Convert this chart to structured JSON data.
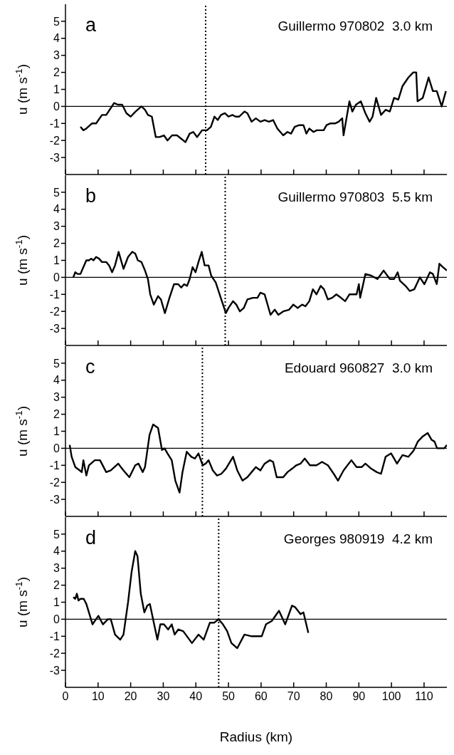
{
  "chart_data": [
    {
      "type": "line",
      "title": "Guillermo 970802  3.0 km",
      "annotations": [
        "a"
      ],
      "ylabel": "u (m s$^{-1}$)",
      "color": "#000000",
      "line_style": "solid",
      "marker": "none",
      "tick_labels": "y",
      "xlim": [
        0,
        117
      ],
      "xticks": [
        0,
        10,
        20,
        30,
        40,
        50,
        60,
        70,
        80,
        90,
        100,
        110
      ],
      "ylim": [
        -4,
        6
      ],
      "yticks": [
        -3,
        -2,
        -1,
        0,
        1,
        2,
        3,
        4,
        5
      ],
      "ref_lines": [
        {
          "axis": "y",
          "value": 0,
          "line_style": "solid"
        },
        {
          "axis": "x",
          "value": 43,
          "line_style": "dotted"
        }
      ],
      "x": [
        4.6,
        5.5,
        6.4,
        8.1,
        9.4,
        11.2,
        12.5,
        13.9,
        14.9,
        16.1,
        17.4,
        18.7,
        20.0,
        21.5,
        23.3,
        24.4,
        25.3,
        26.5,
        27.7,
        28.9,
        30.2,
        31.3,
        32.7,
        34.2,
        35.5,
        36.8,
        38.1,
        39.2,
        40.4,
        41.9,
        43.4,
        44.6,
        45.7,
        46.7,
        47.7,
        48.9,
        50.0,
        51.2,
        52.2,
        53.3,
        54.9,
        55.8,
        57.1,
        58.4,
        59.8,
        61.1,
        62.4,
        63.7,
        65.0,
        66.8,
        68.1,
        69.2,
        70.3,
        71.7,
        73.0,
        73.9,
        74.8,
        76.1,
        77.1,
        78.3,
        79.2,
        80.1,
        81.2,
        82.7,
        83.8,
        84.9,
        85.3,
        86.2,
        87.1,
        88.0,
        89.1,
        90.6,
        92.0,
        93.3,
        94.2,
        95.3,
        96.8,
        98.2,
        99.5,
        100.8,
        102.1,
        103.4,
        105.2,
        106.7,
        107.6,
        108.0,
        109.6,
        110.5,
        111.4,
        112.7,
        113.9,
        115.4,
        116.7
      ],
      "values": [
        -1.2,
        -1.4,
        -1.3,
        -1.0,
        -1.0,
        -0.5,
        -0.5,
        -0.1,
        0.2,
        0.1,
        0.1,
        -0.4,
        -0.6,
        -0.3,
        0.0,
        -0.2,
        -0.5,
        -0.6,
        -1.8,
        -1.8,
        -1.7,
        -2.0,
        -1.7,
        -1.7,
        -1.9,
        -2.1,
        -1.6,
        -1.5,
        -1.8,
        -1.4,
        -1.4,
        -1.2,
        -0.6,
        -0.8,
        -0.5,
        -0.4,
        -0.6,
        -0.5,
        -0.6,
        -0.6,
        -0.3,
        -0.4,
        -0.9,
        -0.7,
        -0.9,
        -0.8,
        -0.9,
        -0.8,
        -1.3,
        -1.7,
        -1.5,
        -1.6,
        -1.2,
        -1.1,
        -1.1,
        -1.6,
        -1.3,
        -1.5,
        -1.4,
        -1.4,
        -1.4,
        -1.1,
        -1.0,
        -1.0,
        -0.9,
        -0.7,
        -1.7,
        -0.7,
        0.3,
        -0.3,
        0.1,
        0.3,
        -0.4,
        -0.9,
        -0.6,
        0.5,
        -0.5,
        -0.2,
        -0.3,
        0.5,
        0.4,
        1.2,
        1.7,
        2.0,
        2.0,
        0.3,
        0.5,
        1.1,
        1.7,
        0.9,
        0.9,
        0.0,
        0.9
      ]
    },
    {
      "type": "line",
      "title": "Guillermo 970803  5.5 km",
      "annotations": [
        "b"
      ],
      "ylabel": "u (m s$^{-1}$)",
      "color": "#000000",
      "line_style": "solid",
      "marker": "none",
      "tick_labels": "y",
      "xlim": [
        0,
        117
      ],
      "xticks": [
        0,
        10,
        20,
        30,
        40,
        50,
        60,
        70,
        80,
        90,
        100,
        110
      ],
      "ylim": [
        -4,
        6
      ],
      "yticks": [
        -3,
        -2,
        -1,
        0,
        1,
        2,
        3,
        4,
        5
      ],
      "ref_lines": [
        {
          "axis": "y",
          "value": 0,
          "line_style": "solid"
        },
        {
          "axis": "x",
          "value": 49,
          "line_style": "dotted"
        }
      ],
      "x": [
        2.4,
        3.0,
        3.7,
        4.6,
        5.5,
        6.4,
        7.2,
        7.9,
        8.6,
        9.4,
        10.3,
        11.2,
        12.5,
        13.4,
        14.3,
        15.2,
        16.3,
        17.8,
        19.2,
        20.5,
        21.4,
        22.2,
        23.3,
        24.4,
        25.3,
        26.0,
        27.1,
        28.4,
        29.3,
        30.5,
        31.9,
        33.3,
        34.6,
        35.5,
        36.4,
        37.3,
        38.1,
        39.0,
        39.9,
        40.8,
        41.8,
        42.7,
        43.9,
        44.7,
        46.1,
        47.8,
        49.2,
        50.0,
        51.4,
        52.4,
        53.5,
        54.7,
        55.8,
        57.5,
        58.9,
        59.8,
        61.1,
        62.9,
        64.2,
        65.3,
        66.8,
        68.6,
        69.9,
        71.2,
        72.6,
        73.6,
        74.8,
        75.9,
        77.0,
        78.3,
        79.3,
        80.5,
        81.8,
        83.1,
        84.5,
        85.8,
        87.1,
        89.3,
        90.0,
        90.4,
        92.0,
        93.8,
        95.7,
        97.6,
        99.5,
        100.8,
        101.9,
        102.6,
        104.3,
        105.6,
        107.0,
        108.7,
        110.1,
        111.8,
        112.7,
        113.9,
        114.7,
        115.8,
        117.0
      ],
      "values": [
        0.0,
        0.3,
        0.2,
        0.2,
        0.6,
        1.0,
        1.0,
        1.1,
        1.0,
        1.2,
        1.1,
        0.9,
        0.9,
        0.7,
        0.3,
        0.7,
        1.5,
        0.5,
        1.2,
        1.5,
        1.4,
        1.0,
        0.9,
        0.4,
        -0.1,
        -1.0,
        -1.6,
        -1.1,
        -1.3,
        -2.1,
        -1.2,
        -0.4,
        -0.4,
        -0.6,
        -0.4,
        -0.5,
        -0.1,
        0.6,
        0.3,
        0.9,
        1.5,
        0.7,
        0.7,
        0.1,
        -0.3,
        -1.3,
        -2.1,
        -1.8,
        -1.4,
        -1.6,
        -2.0,
        -1.8,
        -1.3,
        -1.2,
        -1.2,
        -0.9,
        -1.0,
        -2.2,
        -1.9,
        -2.2,
        -2.0,
        -1.9,
        -1.6,
        -1.8,
        -1.6,
        -1.7,
        -1.4,
        -0.7,
        -1.0,
        -0.5,
        -0.7,
        -1.3,
        -1.2,
        -1.0,
        -1.2,
        -1.4,
        -1.0,
        -1.0,
        -0.4,
        -1.2,
        0.2,
        0.1,
        -0.1,
        0.4,
        -0.1,
        -0.1,
        0.3,
        -0.2,
        -0.5,
        -0.8,
        -0.7,
        0.0,
        -0.4,
        0.3,
        0.2,
        -0.4,
        0.8,
        0.6,
        0.4
      ]
    },
    {
      "type": "line",
      "title": "Edouard 960827  3.0 km",
      "annotations": [
        "c"
      ],
      "ylabel": "u (m s$^{-1}$)",
      "color": "#000000",
      "line_style": "solid",
      "marker": "none",
      "tick_labels": "y",
      "xlim": [
        0,
        117
      ],
      "xticks": [
        0,
        10,
        20,
        30,
        40,
        50,
        60,
        70,
        80,
        90,
        100,
        110
      ],
      "ylim": [
        -4,
        6
      ],
      "yticks": [
        -3,
        -2,
        -1,
        0,
        1,
        2,
        3,
        4,
        5
      ],
      "ref_lines": [
        {
          "axis": "y",
          "value": 0,
          "line_style": "solid"
        },
        {
          "axis": "x",
          "value": 42,
          "line_style": "dotted"
        }
      ],
      "x": [
        1.3,
        1.9,
        3.0,
        4.4,
        5.0,
        5.5,
        6.4,
        7.2,
        9.0,
        10.6,
        12.5,
        13.9,
        16.2,
        17.8,
        19.6,
        21.4,
        22.4,
        23.7,
        24.4,
        25.8,
        26.9,
        28.4,
        29.6,
        30.4,
        31.3,
        32.6,
        33.7,
        35.0,
        35.9,
        37.2,
        38.6,
        39.7,
        40.8,
        42.1,
        43.0,
        43.9,
        45.2,
        46.5,
        47.8,
        49.2,
        51.4,
        52.7,
        54.3,
        55.8,
        57.1,
        58.4,
        59.8,
        61.1,
        62.7,
        63.7,
        64.8,
        66.8,
        68.1,
        69.5,
        70.8,
        72.1,
        73.4,
        75.0,
        77.0,
        78.7,
        80.5,
        82.3,
        83.6,
        85.3,
        87.7,
        89.3,
        90.9,
        92.0,
        93.8,
        95.5,
        96.8,
        98.2,
        99.9,
        101.7,
        103.4,
        105.2,
        106.5,
        106.9,
        108.1,
        109.6,
        111.1,
        112.3,
        113.2,
        114.0,
        116.2,
        117.0
      ],
      "values": [
        0.2,
        -0.5,
        -1.1,
        -1.3,
        -1.4,
        -0.7,
        -1.6,
        -1.0,
        -0.7,
        -0.7,
        -1.4,
        -1.3,
        -0.9,
        -1.3,
        -1.7,
        -1.0,
        -0.9,
        -1.4,
        -1.1,
        0.8,
        1.4,
        1.2,
        -0.1,
        0.0,
        -0.3,
        -0.7,
        -1.9,
        -2.6,
        -1.4,
        -0.2,
        -0.5,
        -0.6,
        -0.3,
        -1.0,
        -0.9,
        -0.7,
        -1.3,
        -1.6,
        -1.5,
        -1.2,
        -0.5,
        -1.3,
        -1.9,
        -1.7,
        -1.4,
        -1.1,
        -1.3,
        -0.9,
        -0.7,
        -0.8,
        -1.7,
        -1.7,
        -1.4,
        -1.2,
        -1.0,
        -0.9,
        -0.6,
        -1.0,
        -1.0,
        -0.8,
        -1.0,
        -1.5,
        -1.9,
        -1.3,
        -0.7,
        -1.1,
        -1.1,
        -0.9,
        -1.2,
        -1.4,
        -1.5,
        -0.5,
        -0.3,
        -0.9,
        -0.4,
        -0.5,
        -0.2,
        -0.1,
        0.4,
        0.7,
        0.9,
        0.5,
        0.4,
        0.0,
        0.0,
        0.2
      ]
    },
    {
      "type": "line",
      "title": "Georges 980919  4.2 km",
      "annotations": [
        "d"
      ],
      "xlabel": "Radius (km)",
      "ylabel": "u (m s$^{-1}$)",
      "color": "#000000",
      "line_style": "solid",
      "marker": "none",
      "xlim": [
        0,
        117
      ],
      "xticks": [
        0,
        10,
        20,
        30,
        40,
        50,
        60,
        70,
        80,
        90,
        100,
        110
      ],
      "ylim": [
        -4,
        6
      ],
      "yticks": [
        -3,
        -2,
        -1,
        0,
        1,
        2,
        3,
        4,
        5
      ],
      "ref_lines": [
        {
          "axis": "y",
          "value": 0,
          "line_style": "solid"
        },
        {
          "axis": "x",
          "value": 47,
          "line_style": "dotted"
        }
      ],
      "x": [
        2.4,
        3.0,
        3.5,
        4.0,
        4.6,
        5.6,
        6.4,
        7.2,
        8.3,
        9.0,
        10.1,
        11.5,
        13.0,
        13.9,
        15.2,
        16.8,
        17.8,
        19.2,
        20.3,
        21.4,
        22.1,
        23.1,
        24.2,
        25.1,
        25.9,
        27.1,
        28.2,
        29.1,
        30.2,
        31.5,
        32.6,
        33.5,
        34.6,
        36.1,
        38.8,
        40.8,
        42.4,
        44.3,
        45.6,
        47.0,
        48.3,
        49.6,
        50.9,
        52.7,
        54.9,
        57.1,
        60.2,
        61.5,
        63.3,
        65.5,
        67.4,
        69.5,
        70.5,
        72.1,
        73.0,
        74.5
      ],
      "values": [
        1.3,
        1.2,
        1.5,
        1.1,
        1.2,
        1.2,
        0.9,
        0.4,
        -0.3,
        -0.1,
        0.2,
        -0.3,
        0.0,
        0.0,
        -0.9,
        -1.2,
        -0.9,
        1.0,
        2.8,
        4.0,
        3.7,
        1.5,
        0.4,
        0.8,
        0.9,
        -0.2,
        -1.2,
        -0.3,
        -0.3,
        -0.6,
        -0.3,
        -0.9,
        -0.6,
        -0.7,
        -1.4,
        -0.9,
        -1.2,
        -0.2,
        -0.2,
        0.0,
        -0.3,
        -0.7,
        -1.4,
        -1.7,
        -0.9,
        -1.0,
        -1.0,
        -0.3,
        -0.1,
        0.5,
        -0.3,
        0.8,
        0.7,
        0.3,
        0.4,
        -0.8
      ]
    }
  ]
}
